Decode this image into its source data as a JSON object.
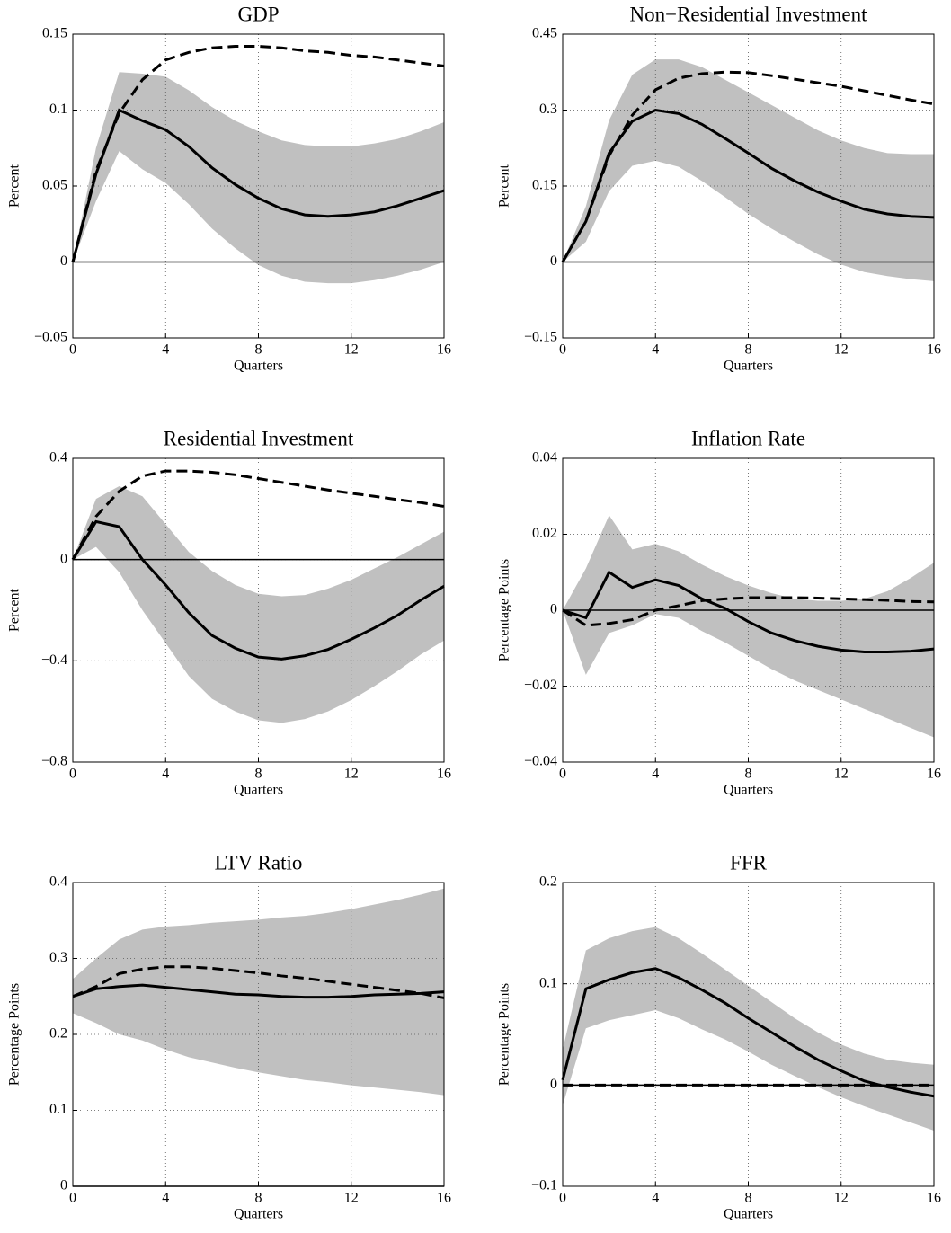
{
  "chart_data": [
    {
      "type": "line",
      "title": "GDP",
      "xlabel": "Quarters",
      "ylabel": "Percent",
      "x": [
        0,
        1,
        2,
        3,
        4,
        5,
        6,
        7,
        8,
        9,
        10,
        11,
        12,
        13,
        14,
        15,
        16
      ],
      "xlim": [
        0,
        16
      ],
      "xticks": [
        0,
        4,
        8,
        12,
        16
      ],
      "ylim": [
        -0.05,
        0.15
      ],
      "yticks": [
        {
          "value": -0.05,
          "label": "−0.05"
        },
        0,
        0.05,
        0.1,
        0.15
      ],
      "grid": true,
      "band": {
        "color": "#c0c0c0",
        "upper": [
          0,
          0.075,
          0.125,
          0.124,
          0.122,
          0.113,
          0.102,
          0.093,
          0.086,
          0.08,
          0.077,
          0.076,
          0.076,
          0.078,
          0.081,
          0.086,
          0.092
        ],
        "lower": [
          0,
          0.04,
          0.073,
          0.061,
          0.052,
          0.038,
          0.022,
          0.009,
          -0.002,
          -0.009,
          -0.013,
          -0.014,
          -0.014,
          -0.012,
          -0.009,
          -0.005,
          0.0
        ]
      },
      "series": [
        {
          "color": "#000000",
          "dash": false,
          "values": [
            0,
            0.058,
            0.1,
            0.093,
            0.087,
            0.076,
            0.062,
            0.051,
            0.042,
            0.035,
            0.031,
            0.03,
            0.031,
            0.033,
            0.037,
            0.042,
            0.047
          ]
        },
        {
          "color": "#000000",
          "dash": true,
          "values": [
            0,
            0.06,
            0.098,
            0.12,
            0.133,
            0.138,
            0.141,
            0.142,
            0.142,
            0.141,
            0.139,
            0.138,
            0.136,
            0.135,
            0.133,
            0.131,
            0.129
          ]
        }
      ]
    },
    {
      "type": "line",
      "title": "Non−Residential Investment",
      "xlabel": "Quarters",
      "ylabel": "Percent",
      "x": [
        0,
        1,
        2,
        3,
        4,
        5,
        6,
        7,
        8,
        9,
        10,
        11,
        12,
        13,
        14,
        15,
        16
      ],
      "xlim": [
        0,
        16
      ],
      "xticks": [
        0,
        4,
        8,
        12,
        16
      ],
      "ylim": [
        -0.15,
        0.45
      ],
      "yticks": [
        {
          "value": -0.15,
          "label": "−0.15"
        },
        0,
        0.15,
        0.3,
        0.45
      ],
      "grid": true,
      "band": {
        "color": "#c0c0c0",
        "upper": [
          0,
          0.11,
          0.28,
          0.37,
          0.4,
          0.4,
          0.385,
          0.36,
          0.335,
          0.31,
          0.285,
          0.26,
          0.24,
          0.225,
          0.215,
          0.213,
          0.213
        ],
        "lower": [
          0,
          0.04,
          0.14,
          0.19,
          0.2,
          0.188,
          0.16,
          0.128,
          0.095,
          0.066,
          0.04,
          0.015,
          -0.005,
          -0.02,
          -0.028,
          -0.034,
          -0.038
        ]
      },
      "series": [
        {
          "color": "#000000",
          "dash": false,
          "values": [
            0,
            0.08,
            0.215,
            0.278,
            0.3,
            0.293,
            0.272,
            0.244,
            0.215,
            0.185,
            0.16,
            0.138,
            0.12,
            0.104,
            0.095,
            0.09,
            0.088
          ]
        },
        {
          "color": "#000000",
          "dash": true,
          "values": [
            0,
            0.08,
            0.21,
            0.29,
            0.34,
            0.363,
            0.372,
            0.375,
            0.374,
            0.368,
            0.361,
            0.354,
            0.347,
            0.338,
            0.329,
            0.32,
            0.312
          ]
        }
      ]
    },
    {
      "type": "line",
      "title": "Residential Investment",
      "xlabel": "Quarters",
      "ylabel": "Percent",
      "x": [
        0,
        1,
        2,
        3,
        4,
        5,
        6,
        7,
        8,
        9,
        10,
        11,
        12,
        13,
        14,
        15,
        16
      ],
      "xlim": [
        0,
        16
      ],
      "xticks": [
        0,
        4,
        8,
        12,
        16
      ],
      "ylim": [
        -0.8,
        0.4
      ],
      "yticks": [
        {
          "value": -0.8,
          "label": "−0.8"
        },
        {
          "value": -0.4,
          "label": "−0.4"
        },
        0,
        0.4
      ],
      "grid": true,
      "band": {
        "color": "#c0c0c0",
        "upper": [
          0,
          0.24,
          0.29,
          0.25,
          0.14,
          0.03,
          -0.045,
          -0.1,
          -0.135,
          -0.145,
          -0.14,
          -0.115,
          -0.08,
          -0.035,
          0.01,
          0.06,
          0.11
        ],
        "lower": [
          0,
          0.05,
          -0.05,
          -0.2,
          -0.33,
          -0.46,
          -0.55,
          -0.6,
          -0.635,
          -0.645,
          -0.63,
          -0.6,
          -0.555,
          -0.5,
          -0.44,
          -0.375,
          -0.32
        ]
      },
      "series": [
        {
          "color": "#000000",
          "dash": false,
          "values": [
            0,
            0.15,
            0.13,
            0.0,
            -0.1,
            -0.21,
            -0.3,
            -0.35,
            -0.385,
            -0.393,
            -0.38,
            -0.355,
            -0.315,
            -0.27,
            -0.22,
            -0.16,
            -0.105
          ]
        },
        {
          "color": "#000000",
          "dash": true,
          "values": [
            0,
            0.17,
            0.27,
            0.33,
            0.35,
            0.35,
            0.345,
            0.335,
            0.32,
            0.305,
            0.29,
            0.275,
            0.262,
            0.25,
            0.237,
            0.225,
            0.21
          ]
        }
      ]
    },
    {
      "type": "line",
      "title": "Inflation Rate",
      "xlabel": "Quarters",
      "ylabel": "Percentage Points",
      "x": [
        0,
        1,
        2,
        3,
        4,
        5,
        6,
        7,
        8,
        9,
        10,
        11,
        12,
        13,
        14,
        15,
        16
      ],
      "xlim": [
        0,
        16
      ],
      "xticks": [
        0,
        4,
        8,
        12,
        16
      ],
      "ylim": [
        -0.04,
        0.04
      ],
      "yticks": [
        {
          "value": -0.04,
          "label": "−0.04"
        },
        {
          "value": -0.02,
          "label": "−0.02"
        },
        0,
        0.02,
        0.04
      ],
      "grid": true,
      "band": {
        "color": "#c0c0c0",
        "upper": [
          0,
          0.011,
          0.025,
          0.016,
          0.0175,
          0.0155,
          0.012,
          0.009,
          0.0065,
          0.0045,
          0.003,
          0.0025,
          0.0025,
          0.003,
          0.005,
          0.0085,
          0.0125
        ],
        "lower": [
          0,
          -0.017,
          -0.006,
          -0.004,
          -0.001,
          -0.002,
          -0.0055,
          -0.0085,
          -0.012,
          -0.0155,
          -0.0185,
          -0.021,
          -0.0235,
          -0.026,
          -0.0285,
          -0.031,
          -0.0335
        ]
      },
      "series": [
        {
          "color": "#000000",
          "dash": false,
          "values": [
            0,
            -0.002,
            0.01,
            0.006,
            0.008,
            0.0065,
            0.003,
            0.0005,
            -0.003,
            -0.006,
            -0.008,
            -0.0095,
            -0.0105,
            -0.011,
            -0.011,
            -0.0108,
            -0.0102
          ]
        },
        {
          "color": "#000000",
          "dash": true,
          "values": [
            0,
            -0.004,
            -0.0035,
            -0.0025,
            0,
            0.0012,
            0.0025,
            0.003,
            0.0033,
            0.0033,
            0.0033,
            0.0032,
            0.003,
            0.0028,
            0.0026,
            0.0023,
            0.0022
          ]
        }
      ]
    },
    {
      "type": "line",
      "title": "LTV Ratio",
      "xlabel": "Quarters",
      "ylabel": "Percentage Points",
      "x": [
        0,
        1,
        2,
        3,
        4,
        5,
        6,
        7,
        8,
        9,
        10,
        11,
        12,
        13,
        14,
        15,
        16
      ],
      "xlim": [
        0,
        16
      ],
      "xticks": [
        0,
        4,
        8,
        12,
        16
      ],
      "ylim": [
        0,
        0.4
      ],
      "yticks": [
        0,
        0.1,
        0.2,
        0.3,
        0.4
      ],
      "grid": true,
      "band": {
        "color": "#c0c0c0",
        "upper": [
          0.273,
          0.3,
          0.325,
          0.338,
          0.342,
          0.344,
          0.347,
          0.349,
          0.351,
          0.354,
          0.356,
          0.36,
          0.365,
          0.371,
          0.377,
          0.384,
          0.392
        ],
        "lower": [
          0.228,
          0.215,
          0.2,
          0.192,
          0.18,
          0.17,
          0.163,
          0.156,
          0.15,
          0.145,
          0.14,
          0.137,
          0.133,
          0.13,
          0.127,
          0.124,
          0.12
        ]
      },
      "series": [
        {
          "color": "#000000",
          "dash": false,
          "values": [
            0.25,
            0.26,
            0.263,
            0.265,
            0.262,
            0.259,
            0.256,
            0.253,
            0.252,
            0.25,
            0.249,
            0.249,
            0.25,
            0.252,
            0.253,
            0.254,
            0.256
          ]
        },
        {
          "color": "#000000",
          "dash": true,
          "values": [
            0.25,
            0.263,
            0.28,
            0.286,
            0.289,
            0.289,
            0.287,
            0.284,
            0.281,
            0.277,
            0.274,
            0.27,
            0.266,
            0.262,
            0.258,
            0.254,
            0.248
          ]
        }
      ]
    },
    {
      "type": "line",
      "title": "FFR",
      "xlabel": "Quarters",
      "ylabel": "Percentage Points",
      "x": [
        0,
        1,
        2,
        3,
        4,
        5,
        6,
        7,
        8,
        9,
        10,
        11,
        12,
        13,
        14,
        15,
        16
      ],
      "xlim": [
        0,
        16
      ],
      "xticks": [
        0,
        4,
        8,
        12,
        16
      ],
      "ylim": [
        -0.1,
        0.2
      ],
      "yticks": [
        {
          "value": -0.1,
          "label": "−0.1"
        },
        0,
        0.1,
        0.2
      ],
      "grid": true,
      "band": {
        "color": "#c0c0c0",
        "upper": [
          0.035,
          0.133,
          0.145,
          0.152,
          0.156,
          0.145,
          0.13,
          0.114,
          0.098,
          0.082,
          0.066,
          0.052,
          0.04,
          0.031,
          0.025,
          0.022,
          0.02
        ],
        "lower": [
          -0.02,
          0.056,
          0.064,
          0.069,
          0.074,
          0.066,
          0.055,
          0.045,
          0.033,
          0.02,
          0.009,
          -0.002,
          -0.012,
          -0.021,
          -0.029,
          -0.037,
          -0.045
        ]
      },
      "series": [
        {
          "color": "#000000",
          "dash": false,
          "values": [
            0.005,
            0.095,
            0.104,
            0.111,
            0.115,
            0.106,
            0.094,
            0.081,
            0.066,
            0.052,
            0.038,
            0.025,
            0.014,
            0.004,
            -0.002,
            -0.007,
            -0.011
          ]
        },
        {
          "color": "#000000",
          "dash": true,
          "values": [
            0,
            0,
            0,
            0,
            0,
            0,
            0,
            0,
            0,
            0,
            0,
            0,
            0,
            0,
            0,
            0,
            0
          ]
        }
      ]
    }
  ]
}
